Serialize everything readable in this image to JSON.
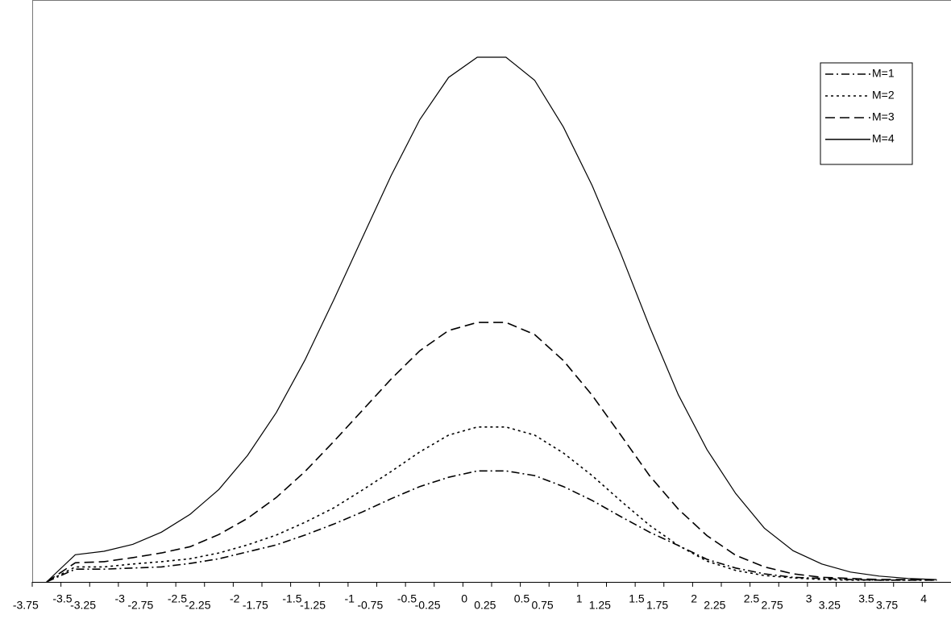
{
  "chart_data": {
    "type": "line",
    "categories": [
      "-3.75",
      "-3.5",
      "-3.25",
      "-3",
      "-2.75",
      "-2.5",
      "-2.25",
      "-2",
      "-1.75",
      "-1.5",
      "-1.25",
      "-1",
      "-0.75",
      "-0.5",
      "-0.25",
      "0",
      "0.25",
      "0.5",
      "0.75",
      "1",
      "1.25",
      "1.5",
      "1.75",
      "2",
      "2.25",
      "2.5",
      "2.75",
      "3",
      "3.25",
      "3.5",
      "3.75",
      "4"
    ],
    "series": [
      {
        "name": "M=1",
        "color": "#000000",
        "dash": "dashdot",
        "values": [
          0,
          2.2,
          2.2,
          2.4,
          2.6,
          3.2,
          4.0,
          5.2,
          6.4,
          8.1,
          10.0,
          12.1,
          14.4,
          16.5,
          18.1,
          19.2,
          19.2,
          18.4,
          16.5,
          14.1,
          11.3,
          8.6,
          6.3,
          3.9,
          2.4,
          1.4,
          0.8,
          0.6,
          0.4,
          0.3,
          0.3,
          0.3
        ]
      },
      {
        "name": "M=2",
        "color": "#000000",
        "dash": "dotted",
        "values": [
          0,
          2.6,
          2.6,
          3.1,
          3.5,
          4.0,
          5.0,
          6.4,
          8.1,
          10.3,
          12.8,
          15.9,
          19.1,
          22.5,
          25.4,
          26.8,
          26.8,
          25.4,
          22.3,
          18.4,
          14.0,
          9.8,
          6.3,
          3.6,
          2.0,
          1.1,
          0.7,
          0.4,
          0.3,
          0.3,
          0.3,
          0.3
        ]
      },
      {
        "name": "M=3",
        "color": "#000000",
        "dash": "dashed",
        "values": [
          0,
          3.3,
          3.5,
          4.2,
          5.0,
          6.1,
          8.2,
          11.0,
          14.6,
          19.1,
          24.3,
          29.7,
          35.1,
          40.0,
          43.5,
          44.9,
          44.9,
          42.8,
          38.3,
          32.3,
          25.4,
          18.4,
          12.6,
          8.0,
          4.6,
          2.6,
          1.4,
          0.8,
          0.6,
          0.4,
          0.4,
          0.3
        ]
      },
      {
        "name": "M=4",
        "color": "#000000",
        "dash": "solid",
        "values": [
          0,
          4.7,
          5.3,
          6.5,
          8.6,
          11.7,
          16.0,
          21.9,
          29.3,
          38.4,
          48.8,
          59.6,
          70.3,
          80.0,
          87.3,
          90.8,
          90.8,
          86.8,
          78.7,
          68.6,
          56.8,
          44.2,
          32.4,
          22.9,
          15.3,
          9.3,
          5.4,
          3.1,
          1.7,
          1.0,
          0.6,
          0.4
        ]
      }
    ],
    "ylim": [
      0,
      100
    ],
    "legend": "upper right"
  }
}
